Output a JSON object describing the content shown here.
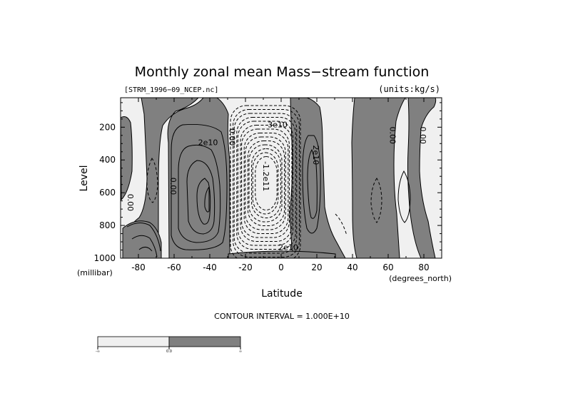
{
  "chart_data": {
    "type": "contour",
    "title": "Monthly zonal mean Mass−stream function",
    "file_label": "[STRM_1996−09_NCEP.nc]",
    "units_label": "(units:kg/s)",
    "xlabel": "Latitude",
    "x_units": "(degrees_north)",
    "ylabel": "Level",
    "y_units": "(millibar)",
    "xlim": [
      -90,
      90
    ],
    "ylim": [
      1000,
      20
    ],
    "x_ticks": [
      -80,
      -60,
      -40,
      -20,
      0,
      20,
      40,
      60,
      80
    ],
    "y_ticks": [
      200,
      400,
      600,
      800,
      1000
    ],
    "contour_interval_label": "CONTOUR INTERVAL = 1.000E+10",
    "contour_labels": [
      {
        "text": "2e10",
        "lat": -41,
        "lev": 310
      },
      {
        "text": "0.00",
        "lat": -29,
        "lev": 260
      },
      {
        "text": "0.00",
        "lat": -62,
        "lev": 560
      },
      {
        "text": "0.00",
        "lat": -86,
        "lev": 660
      },
      {
        "text": "3e10",
        "lat": -2,
        "lev": 200
      },
      {
        "text": "-1.2e11",
        "lat": -10,
        "lev": 500
      },
      {
        "text": "2e10",
        "lat": 18,
        "lev": 370
      },
      {
        "text": "2e10",
        "lat": 4,
        "lev": 950
      },
      {
        "text": "0.00",
        "lat": 61,
        "lev": 250
      },
      {
        "text": "0.00",
        "lat": 78,
        "lev": 250
      }
    ],
    "colorbar": {
      "tick_labels": [
        "-∞",
        "0.0",
        "∞"
      ],
      "colors": [
        "#f0f0f0",
        "#808080"
      ]
    },
    "colors": {
      "positive_shade": "#808080",
      "negative_shade": "#f0f0f0",
      "line": "#000000"
    }
  }
}
